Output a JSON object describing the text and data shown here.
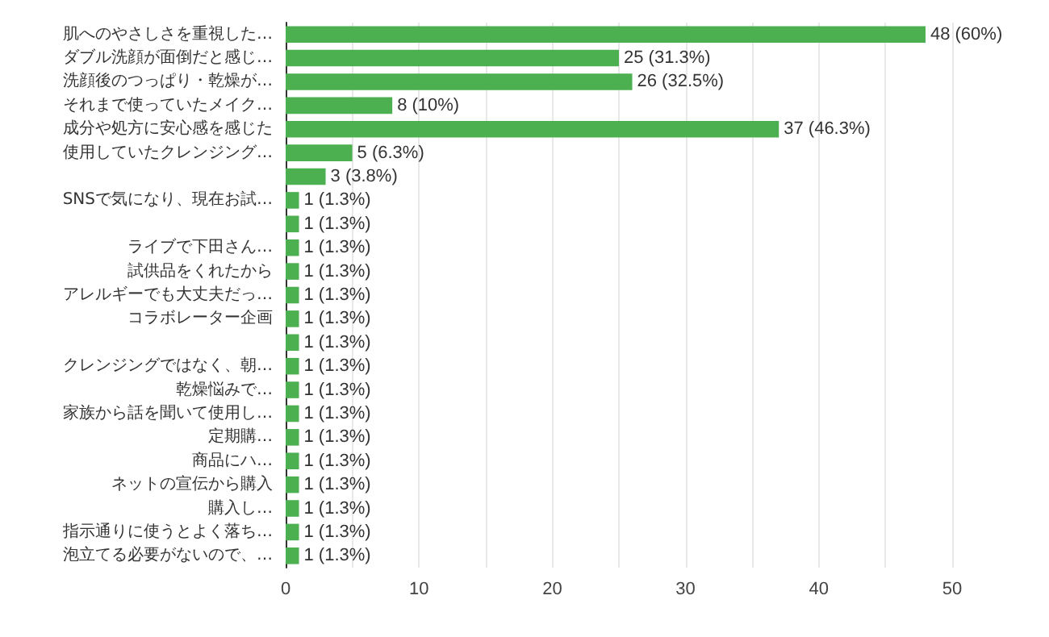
{
  "chart_data": {
    "type": "bar",
    "orientation": "horizontal",
    "categories": [
      "肌へのやさしさを重視した…",
      "ダブル洗顔が面倒だと感じ…",
      "洗顔後のつっぱり・乾燥が…",
      "それまで使っていたメイク…",
      "成分や処方に安心感を感じた",
      "使用していたクレンジング…",
      null,
      "SNSで気になり、現在お試…",
      null,
      "ライブで下田さん…",
      "試供品をくれたから",
      "アレルギーでも大丈夫だっ…",
      "コラボレーター企画",
      null,
      "クレンジングではなく、朝…",
      "乾燥悩みで…",
      "家族から話を聞いて使用し…",
      "定期購…",
      "商品にハ…",
      "ネットの宣伝から購入",
      "購入し…",
      "指示通りに使うとよく落ち…",
      "泡立てる必要がないので、…"
    ],
    "values": [
      48,
      25,
      26,
      8,
      37,
      5,
      3,
      1,
      1,
      1,
      1,
      1,
      1,
      1,
      1,
      1,
      1,
      1,
      1,
      1,
      1,
      1,
      1
    ],
    "value_labels": [
      "48 (60%)",
      "25 (31.3%)",
      "26 (32.5%)",
      "8 (10%)",
      "37 (46.3%)",
      "5 (6.3%)",
      "3 (3.8%)",
      "1 (1.3%)",
      "1 (1.3%)",
      "1 (1.3%)",
      "1 (1.3%)",
      "1 (1.3%)",
      "1 (1.3%)",
      "1 (1.3%)",
      "1 (1.3%)",
      "1 (1.3%)",
      "1 (1.3%)",
      "1 (1.3%)",
      "1 (1.3%)",
      "1 (1.3%)",
      "1 (1.3%)",
      "1 (1.3%)",
      "1 (1.3%)"
    ],
    "color": "#4caf50",
    "xlim": [
      0,
      50
    ],
    "xticks": [
      0,
      {
        "value": 5,
        "label": null
      },
      10,
      {
        "value": 15,
        "label": null
      },
      20,
      {
        "value": 25,
        "label": null
      },
      30,
      {
        "value": 35,
        "label": null
      },
      40,
      {
        "value": 45,
        "label": null
      },
      50
    ],
    "grid": "x"
  }
}
